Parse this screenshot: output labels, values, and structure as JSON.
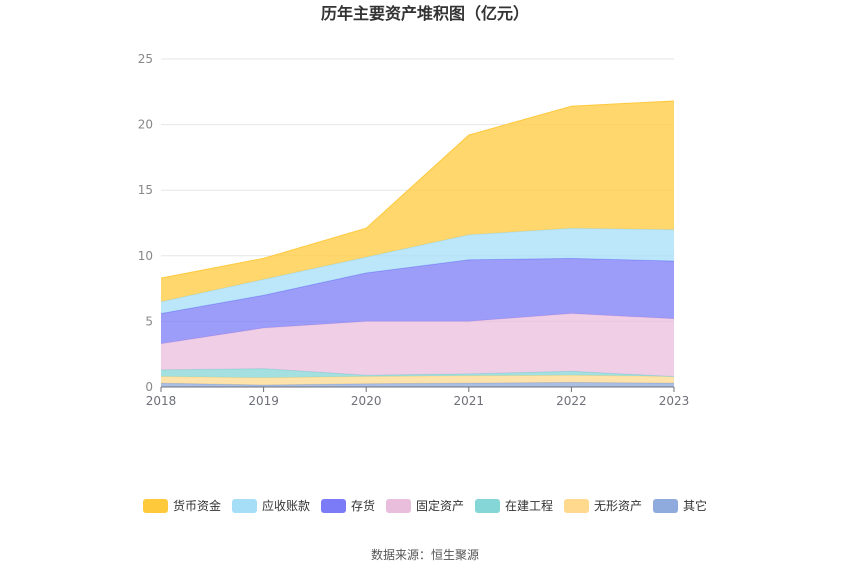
{
  "chart_data": {
    "type": "area",
    "stacked": true,
    "title": "历年主要资产堆积图（亿元）",
    "x": [
      "2018",
      "2019",
      "2020",
      "2021",
      "2022",
      "2023"
    ],
    "ylim": [
      0,
      25
    ],
    "yticks": [
      0,
      5,
      10,
      15,
      20,
      25
    ],
    "grid": true,
    "legend_position": "bottom",
    "series": [
      {
        "name": "其它",
        "color": "#8FAADC",
        "values": [
          0.3,
          0.15,
          0.25,
          0.3,
          0.35,
          0.3
        ]
      },
      {
        "name": "无形资产",
        "color": "#FFD98E",
        "values": [
          0.5,
          0.55,
          0.55,
          0.55,
          0.55,
          0.5
        ]
      },
      {
        "name": "在建工程",
        "color": "#85D6D6",
        "values": [
          0.5,
          0.7,
          0.1,
          0.15,
          0.3,
          0.0
        ]
      },
      {
        "name": "固定资产",
        "color": "#E9BEDD",
        "values": [
          2.0,
          3.1,
          4.1,
          4.0,
          4.4,
          4.4
        ]
      },
      {
        "name": "存货",
        "color": "#7B7BF7",
        "values": [
          2.3,
          2.5,
          3.7,
          4.7,
          4.2,
          4.4
        ]
      },
      {
        "name": "应收账款",
        "color": "#A6DDF7",
        "values": [
          0.9,
          1.2,
          1.2,
          1.9,
          2.3,
          2.4
        ]
      },
      {
        "name": "货币资金",
        "color": "#FFC93C",
        "values": [
          1.8,
          1.6,
          2.2,
          7.6,
          9.3,
          9.8
        ]
      }
    ]
  },
  "legend_order": [
    "货币资金",
    "应收账款",
    "存货",
    "固定资产",
    "在建工程",
    "无形资产",
    "其它"
  ],
  "source": "数据来源：恒生聚源"
}
